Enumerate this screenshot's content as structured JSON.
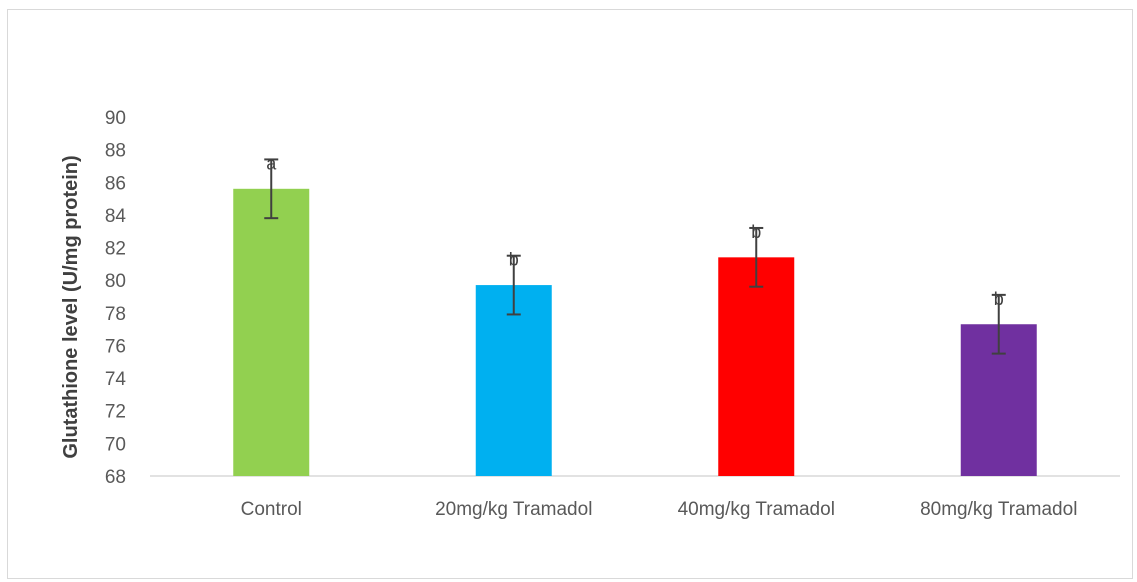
{
  "chart_data": {
    "type": "bar",
    "title": "",
    "xlabel": "",
    "ylabel": "Glutathione level (U/mg protein)",
    "ylim": [
      68,
      90
    ],
    "ytick_step": 2,
    "yticks": [
      "68",
      "70",
      "72",
      "74",
      "76",
      "78",
      "80",
      "82",
      "84",
      "86",
      "88",
      "90"
    ],
    "grid": false,
    "legend": "none",
    "categories": [
      "Control",
      "20mg/kg Tramadol",
      "40mg/kg Tramadol",
      "80mg/kg Tramadol"
    ],
    "values": [
      85.6,
      79.7,
      81.4,
      77.3
    ],
    "error": [
      1.8,
      1.8,
      1.8,
      1.8
    ],
    "labels": [
      "a",
      "b",
      "b",
      "b"
    ],
    "colors": [
      "#92d050",
      "#00b0f0",
      "#ff0000",
      "#7030a0"
    ]
  }
}
